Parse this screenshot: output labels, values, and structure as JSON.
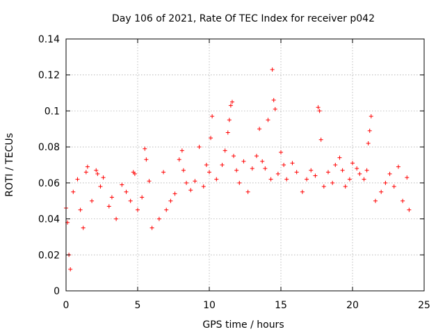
{
  "chart_data": {
    "type": "scatter",
    "title": "Day 106 of 2021, Rate Of TEC Index for receiver p042",
    "xlabel": "GPS time / hours",
    "ylabel": "ROTI / TECUs",
    "xlim": [
      0,
      25
    ],
    "ylim": [
      0,
      0.14
    ],
    "xticks": [
      0,
      5,
      10,
      15,
      20,
      25
    ],
    "xtick_labels": [
      "0",
      "5",
      "10",
      "15",
      "20",
      "25"
    ],
    "yticks": [
      0,
      0.02,
      0.04,
      0.06,
      0.08,
      0.1,
      0.12,
      0.14
    ],
    "ytick_labels": [
      "0",
      "0.02",
      "0.04",
      "0.06",
      "0.08",
      "0.1",
      "0.12",
      "0.14"
    ],
    "grid": true,
    "marker": "+",
    "series": [
      {
        "name": "ROTI",
        "color": "#ff0000",
        "points": [
          [
            0.0,
            0.046
          ],
          [
            0.1,
            0.038
          ],
          [
            0.2,
            0.02
          ],
          [
            0.3,
            0.012
          ],
          [
            0.5,
            0.055
          ],
          [
            0.8,
            0.062
          ],
          [
            1.0,
            0.045
          ],
          [
            1.2,
            0.035
          ],
          [
            1.4,
            0.066
          ],
          [
            1.5,
            0.069
          ],
          [
            1.8,
            0.05
          ],
          [
            2.1,
            0.067
          ],
          [
            2.2,
            0.065
          ],
          [
            2.4,
            0.058
          ],
          [
            2.6,
            0.063
          ],
          [
            3.0,
            0.047
          ],
          [
            3.2,
            0.052
          ],
          [
            3.5,
            0.04
          ],
          [
            3.9,
            0.059
          ],
          [
            4.2,
            0.055
          ],
          [
            4.5,
            0.05
          ],
          [
            4.7,
            0.066
          ],
          [
            4.8,
            0.065
          ],
          [
            5.0,
            0.045
          ],
          [
            5.3,
            0.052
          ],
          [
            5.5,
            0.079
          ],
          [
            5.6,
            0.073
          ],
          [
            5.8,
            0.061
          ],
          [
            6.0,
            0.035
          ],
          [
            6.5,
            0.04
          ],
          [
            6.8,
            0.066
          ],
          [
            7.0,
            0.045
          ],
          [
            7.3,
            0.05
          ],
          [
            7.6,
            0.054
          ],
          [
            7.9,
            0.073
          ],
          [
            8.1,
            0.078
          ],
          [
            8.2,
            0.067
          ],
          [
            8.4,
            0.06
          ],
          [
            8.7,
            0.056
          ],
          [
            9.0,
            0.061
          ],
          [
            9.3,
            0.08
          ],
          [
            9.6,
            0.058
          ],
          [
            9.8,
            0.07
          ],
          [
            10.0,
            0.066
          ],
          [
            10.1,
            0.085
          ],
          [
            10.2,
            0.097
          ],
          [
            10.5,
            0.062
          ],
          [
            10.9,
            0.07
          ],
          [
            11.1,
            0.078
          ],
          [
            11.3,
            0.088
          ],
          [
            11.4,
            0.095
          ],
          [
            11.5,
            0.103
          ],
          [
            11.6,
            0.105
          ],
          [
            11.7,
            0.075
          ],
          [
            11.9,
            0.067
          ],
          [
            12.1,
            0.06
          ],
          [
            12.4,
            0.072
          ],
          [
            12.7,
            0.055
          ],
          [
            13.0,
            0.068
          ],
          [
            13.3,
            0.075
          ],
          [
            13.5,
            0.09
          ],
          [
            13.7,
            0.072
          ],
          [
            13.9,
            0.068
          ],
          [
            14.1,
            0.095
          ],
          [
            14.3,
            0.062
          ],
          [
            14.4,
            0.123
          ],
          [
            14.5,
            0.106
          ],
          [
            14.6,
            0.101
          ],
          [
            14.8,
            0.065
          ],
          [
            15.0,
            0.077
          ],
          [
            15.2,
            0.07
          ],
          [
            15.4,
            0.062
          ],
          [
            15.8,
            0.071
          ],
          [
            16.1,
            0.066
          ],
          [
            16.5,
            0.055
          ],
          [
            16.8,
            0.062
          ],
          [
            17.1,
            0.067
          ],
          [
            17.4,
            0.064
          ],
          [
            17.6,
            0.102
          ],
          [
            17.7,
            0.1
          ],
          [
            17.8,
            0.084
          ],
          [
            18.0,
            0.058
          ],
          [
            18.3,
            0.066
          ],
          [
            18.6,
            0.06
          ],
          [
            18.8,
            0.07
          ],
          [
            19.1,
            0.074
          ],
          [
            19.3,
            0.067
          ],
          [
            19.5,
            0.058
          ],
          [
            19.8,
            0.062
          ],
          [
            20.0,
            0.071
          ],
          [
            20.3,
            0.068
          ],
          [
            20.5,
            0.065
          ],
          [
            20.8,
            0.062
          ],
          [
            21.0,
            0.067
          ],
          [
            21.1,
            0.082
          ],
          [
            21.2,
            0.089
          ],
          [
            21.3,
            0.097
          ],
          [
            21.6,
            0.05
          ],
          [
            22.0,
            0.055
          ],
          [
            22.3,
            0.06
          ],
          [
            22.6,
            0.065
          ],
          [
            22.9,
            0.058
          ],
          [
            23.2,
            0.069
          ],
          [
            23.5,
            0.05
          ],
          [
            23.8,
            0.063
          ],
          [
            23.95,
            0.045
          ]
        ]
      }
    ]
  }
}
